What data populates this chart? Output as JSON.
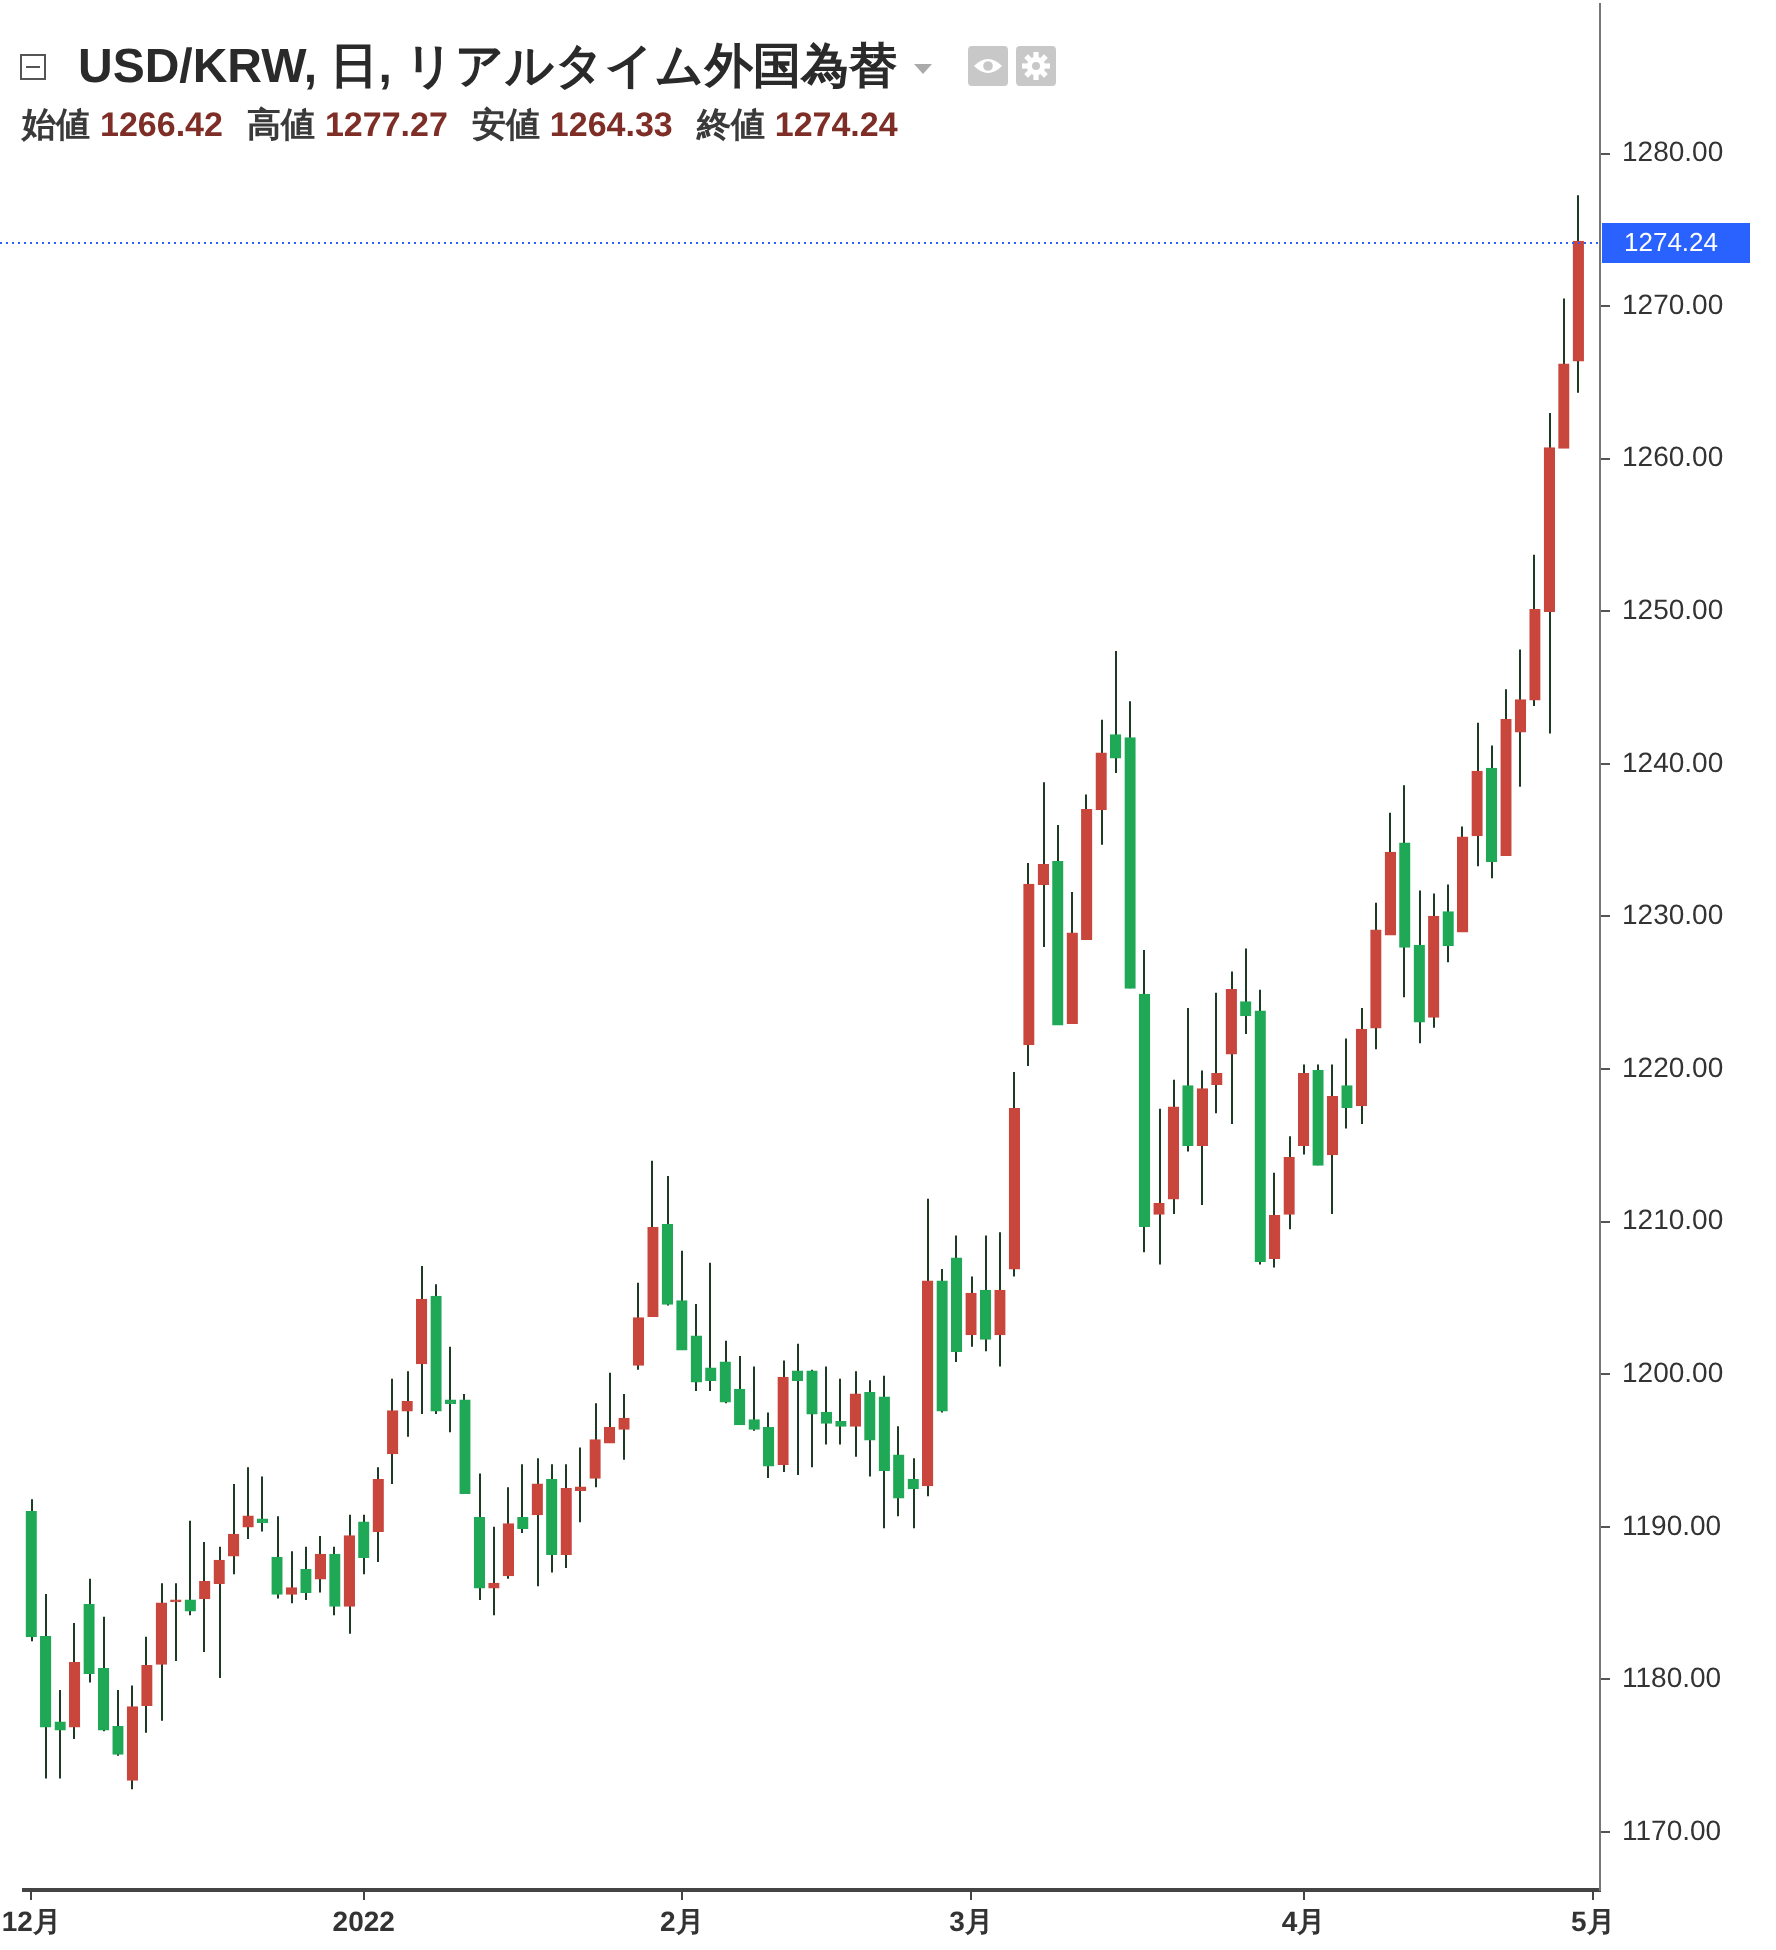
{
  "chart_data": {
    "type": "candlestick",
    "title": "USD/KRW, 日, リアルタイム外国為替",
    "subtitle": "始値 1266.42 高値 1277.27 安値 1264.33 終値 1274.24",
    "categories": [
      "12月",
      null,
      null,
      null,
      null,
      null,
      null,
      null,
      null,
      null,
      null,
      null,
      null,
      null,
      null,
      null,
      null,
      null,
      null,
      null,
      null,
      null,
      null,
      "2022",
      null,
      null,
      null,
      null,
      null,
      null,
      null,
      null,
      null,
      null,
      null,
      null,
      null,
      null,
      null,
      null,
      null,
      null,
      null,
      null,
      null,
      "2月",
      null,
      null,
      null,
      null,
      null,
      null,
      null,
      null,
      null,
      null,
      null,
      null,
      null,
      null,
      null,
      null,
      null,
      null,
      null,
      "3月",
      null,
      null,
      null,
      null,
      null,
      null,
      null,
      null,
      null,
      null,
      null,
      null,
      null,
      null,
      null,
      null,
      null,
      null,
      null,
      null,
      null,
      null,
      "4月",
      null,
      null,
      null,
      null,
      null,
      null,
      null,
      null,
      null,
      null,
      null,
      null,
      null,
      null,
      null,
      null,
      null,
      null,
      null,
      "5月"
    ],
    "ohlc": [
      [
        1191.0,
        1191.8,
        1182.5,
        1182.8
      ],
      [
        1182.8,
        1185.6,
        1173.5,
        1176.9
      ],
      [
        1177.2,
        1179.3,
        1173.5,
        1176.7
      ],
      [
        1176.9,
        1183.7,
        1176.1,
        1181.1
      ],
      [
        1184.9,
        1186.6,
        1179.8,
        1180.4
      ],
      [
        1180.7,
        1184.1,
        1176.6,
        1176.7
      ],
      [
        1176.9,
        1179.3,
        1175.0,
        1175.1
      ],
      [
        1173.4,
        1179.6,
        1172.8,
        1178.2
      ],
      [
        1178.3,
        1182.8,
        1176.5,
        1180.9
      ],
      [
        1181.0,
        1186.3,
        1177.3,
        1185.0
      ],
      [
        1185.1,
        1186.3,
        1181.2,
        1185.2
      ],
      [
        1185.2,
        1190.4,
        1184.2,
        1184.5
      ],
      [
        1185.3,
        1189.0,
        1181.8,
        1186.4
      ],
      [
        1186.3,
        1188.7,
        1180.1,
        1187.8
      ],
      [
        1188.1,
        1192.8,
        1186.9,
        1189.5
      ],
      [
        1190.0,
        1193.9,
        1189.2,
        1190.7
      ],
      [
        1190.5,
        1193.3,
        1189.7,
        1190.3
      ],
      [
        1188.0,
        1190.7,
        1185.3,
        1185.6
      ],
      [
        1185.6,
        1188.4,
        1185.0,
        1186.0
      ],
      [
        1187.2,
        1188.7,
        1185.2,
        1185.7
      ],
      [
        1186.6,
        1189.4,
        1185.7,
        1188.2
      ],
      [
        1188.2,
        1188.7,
        1184.2,
        1184.8
      ],
      [
        1184.8,
        1190.8,
        1183.0,
        1189.4
      ],
      [
        1190.3,
        1190.8,
        1186.9,
        1188.0
      ],
      [
        1189.7,
        1193.9,
        1187.7,
        1193.1
      ],
      [
        1194.8,
        1199.7,
        1192.8,
        1197.6
      ],
      [
        1197.6,
        1200.2,
        1195.9,
        1198.2
      ],
      [
        1200.7,
        1207.1,
        1197.4,
        1204.9
      ],
      [
        1205.1,
        1205.9,
        1197.4,
        1197.6
      ],
      [
        1198.3,
        1201.8,
        1196.2,
        1198.1
      ],
      [
        1198.3,
        1198.7,
        1192.2,
        1192.2
      ],
      [
        1190.6,
        1193.5,
        1185.2,
        1186.0
      ],
      [
        1186.0,
        1190.0,
        1184.2,
        1186.3
      ],
      [
        1186.8,
        1192.6,
        1186.6,
        1190.2
      ],
      [
        1190.6,
        1194.1,
        1189.6,
        1189.9
      ],
      [
        1190.8,
        1194.5,
        1186.1,
        1192.8
      ],
      [
        1193.1,
        1194.1,
        1187.0,
        1188.2
      ],
      [
        1188.2,
        1194.1,
        1187.3,
        1192.5
      ],
      [
        1192.4,
        1195.2,
        1190.3,
        1192.6
      ],
      [
        1193.2,
        1198.1,
        1192.6,
        1195.7
      ],
      [
        1195.5,
        1200.1,
        1195.5,
        1196.5
      ],
      [
        1196.4,
        1198.7,
        1194.4,
        1197.1
      ],
      [
        1200.6,
        1206.0,
        1200.3,
        1203.7
      ],
      [
        1203.8,
        1214.0,
        1203.8,
        1209.6
      ],
      [
        1209.8,
        1213.0,
        1204.5,
        1204.6
      ],
      [
        1204.8,
        1208.1,
        1201.6,
        1201.6
      ],
      [
        1202.5,
        1204.6,
        1198.9,
        1199.5
      ],
      [
        1200.4,
        1207.3,
        1198.9,
        1199.6
      ],
      [
        1200.8,
        1202.2,
        1198.1,
        1198.2
      ],
      [
        1199.0,
        1201.2,
        1196.7,
        1196.7
      ],
      [
        1197.0,
        1200.5,
        1196.3,
        1196.4
      ],
      [
        1196.5,
        1197.5,
        1193.2,
        1194.0
      ],
      [
        1194.1,
        1200.9,
        1193.6,
        1199.8
      ],
      [
        1200.2,
        1202.0,
        1193.4,
        1199.6
      ],
      [
        1200.2,
        1200.3,
        1193.9,
        1197.4
      ],
      [
        1197.5,
        1200.5,
        1195.4,
        1196.8
      ],
      [
        1196.9,
        1199.7,
        1195.4,
        1196.6
      ],
      [
        1196.6,
        1200.2,
        1194.6,
        1198.7
      ],
      [
        1198.8,
        1199.6,
        1193.3,
        1195.7
      ],
      [
        1198.5,
        1199.9,
        1189.9,
        1193.7
      ],
      [
        1194.7,
        1196.6,
        1190.7,
        1191.9
      ],
      [
        1193.1,
        1194.5,
        1189.9,
        1192.5
      ],
      [
        1192.7,
        1211.5,
        1192.0,
        1206.1
      ],
      [
        1206.1,
        1206.9,
        1197.5,
        1197.6
      ],
      [
        1207.6,
        1209.1,
        1200.8,
        1201.5
      ],
      [
        1202.6,
        1206.4,
        1201.8,
        1205.3
      ],
      [
        1205.5,
        1209.1,
        1201.5,
        1202.3
      ],
      [
        1202.6,
        1209.3,
        1200.5,
        1205.5
      ],
      [
        1206.9,
        1219.8,
        1206.4,
        1217.4
      ],
      [
        1221.6,
        1233.5,
        1220.2,
        1232.1
      ],
      [
        1232.1,
        1238.8,
        1228.0,
        1233.4
      ],
      [
        1233.6,
        1236.0,
        1222.9,
        1222.9
      ],
      [
        1223.0,
        1231.6,
        1223.0,
        1228.9
      ],
      [
        1228.5,
        1238.0,
        1228.5,
        1237.0
      ],
      [
        1237.0,
        1242.9,
        1234.7,
        1240.7
      ],
      [
        1241.9,
        1247.4,
        1239.4,
        1240.4
      ],
      [
        1241.7,
        1244.1,
        1225.3,
        1225.3
      ],
      [
        1224.9,
        1227.8,
        1208.0,
        1209.7
      ],
      [
        1210.5,
        1217.4,
        1207.2,
        1211.2
      ],
      [
        1211.5,
        1219.3,
        1210.5,
        1217.5
      ],
      [
        1218.9,
        1224.0,
        1214.6,
        1215.0
      ],
      [
        1215.0,
        1219.9,
        1211.1,
        1218.7
      ],
      [
        1219.0,
        1225.0,
        1217.1,
        1219.7
      ],
      [
        1221.0,
        1226.4,
        1216.4,
        1225.2
      ],
      [
        1224.4,
        1227.9,
        1222.3,
        1223.5
      ],
      [
        1223.8,
        1225.2,
        1207.2,
        1207.4
      ],
      [
        1207.6,
        1213.2,
        1207.0,
        1210.4
      ],
      [
        1210.5,
        1215.6,
        1209.5,
        1214.2
      ],
      [
        1215.0,
        1220.3,
        1214.4,
        1219.7
      ],
      [
        1219.9,
        1220.3,
        1213.7,
        1213.7
      ],
      [
        1214.4,
        1220.3,
        1210.5,
        1218.2
      ],
      [
        1218.9,
        1222.0,
        1216.1,
        1217.5
      ],
      [
        1217.6,
        1224.0,
        1216.4,
        1222.6
      ],
      [
        1222.7,
        1230.9,
        1221.3,
        1229.1
      ],
      [
        1228.8,
        1236.8,
        1228.8,
        1234.2
      ],
      [
        1234.8,
        1238.6,
        1224.7,
        1228.0
      ],
      [
        1228.1,
        1231.7,
        1221.7,
        1223.1
      ],
      [
        1223.4,
        1231.5,
        1222.7,
        1230.0
      ],
      [
        1230.3,
        1232.1,
        1227.0,
        1228.1
      ],
      [
        1229.0,
        1235.9,
        1229.0,
        1235.2
      ],
      [
        1235.3,
        1242.7,
        1233.3,
        1239.5
      ],
      [
        1239.7,
        1241.2,
        1232.5,
        1233.6
      ],
      [
        1234.0,
        1244.9,
        1234.0,
        1242.9
      ],
      [
        1242.1,
        1247.5,
        1238.5,
        1244.2
      ],
      [
        1244.2,
        1253.7,
        1243.8,
        1250.1
      ],
      [
        1250.0,
        1263.0,
        1242.0,
        1260.7
      ],
      [
        1260.7,
        1270.5,
        1260.7,
        1266.2
      ],
      [
        1266.42,
        1277.27,
        1264.33,
        1274.24
      ],
      null
    ],
    "colors": [
      "#1fa855",
      "#1fa855",
      "#1fa855",
      "#c9463d",
      "#1fa855",
      "#1fa855",
      "#1fa855",
      "#c9463d",
      "#c9463d",
      "#c9463d",
      "#c9463d",
      "#1fa855",
      "#c9463d",
      "#c9463d",
      "#c9463d",
      "#c9463d",
      "#1fa855",
      "#1fa855",
      "#c9463d",
      "#1fa855",
      "#c9463d",
      "#1fa855",
      "#c9463d",
      "#1fa855",
      "#c9463d",
      "#c9463d",
      "#c9463d",
      "#c9463d",
      "#1fa855",
      "#1fa855",
      "#1fa855",
      "#1fa855",
      "#c9463d",
      "#c9463d",
      "#1fa855",
      "#c9463d",
      "#1fa855",
      "#c9463d",
      "#c9463d",
      "#c9463d",
      "#c9463d",
      "#c9463d",
      "#c9463d",
      "#c9463d",
      "#1fa855",
      "#1fa855",
      "#1fa855",
      "#1fa855",
      "#1fa855",
      "#1fa855",
      "#1fa855",
      "#1fa855",
      "#c9463d",
      "#1fa855",
      "#1fa855",
      "#1fa855",
      "#1fa855",
      "#c9463d",
      "#1fa855",
      "#1fa855",
      "#1fa855",
      "#1fa855",
      "#c9463d",
      "#1fa855",
      "#1fa855",
      "#c9463d",
      "#1fa855",
      "#c9463d",
      "#c9463d",
      "#c9463d",
      "#c9463d",
      "#1fa855",
      "#c9463d",
      "#c9463d",
      "#c9463d",
      "#1fa855",
      "#1fa855",
      "#1fa855",
      "#c9463d",
      "#c9463d",
      "#1fa855",
      "#c9463d",
      "#c9463d",
      "#c9463d",
      "#1fa855",
      "#1fa855",
      "#c9463d",
      "#c9463d",
      "#c9463d",
      "#1fa855",
      "#c9463d",
      "#1fa855",
      "#c9463d",
      "#c9463d",
      "#c9463d",
      "#1fa855",
      "#1fa855",
      "#c9463d",
      "#1fa855",
      "#c9463d",
      "#c9463d",
      "#1fa855",
      "#c9463d",
      "#c9463d",
      "#c9463d",
      "#c9463d",
      "#c9463d",
      "#c9463d",
      null
    ],
    "ylim": [
      1166.2,
      1289.8
    ],
    "yticks": [
      {
        "value": 1170,
        "label": "1170.00"
      },
      {
        "value": 1180,
        "label": "1180.00"
      },
      {
        "value": 1190,
        "label": "1190.00"
      },
      {
        "value": 1200,
        "label": "1200.00"
      },
      {
        "value": 1210,
        "label": "1210.00"
      },
      {
        "value": 1220,
        "label": "1220.00"
      },
      {
        "value": 1230,
        "label": "1230.00"
      },
      {
        "value": 1240,
        "label": "1240.00"
      },
      {
        "value": 1250,
        "label": "1250.00"
      },
      {
        "value": 1260,
        "label": "1260.00"
      },
      {
        "value": 1270,
        "label": "1270.00"
      },
      {
        "value": 1280,
        "label": "1280.00"
      }
    ],
    "ref_lines": [
      {
        "axis": "y",
        "value": 1274.24,
        "label": "1274.24",
        "color": "#2962ff",
        "line_style": "dotted"
      }
    ]
  }
}
